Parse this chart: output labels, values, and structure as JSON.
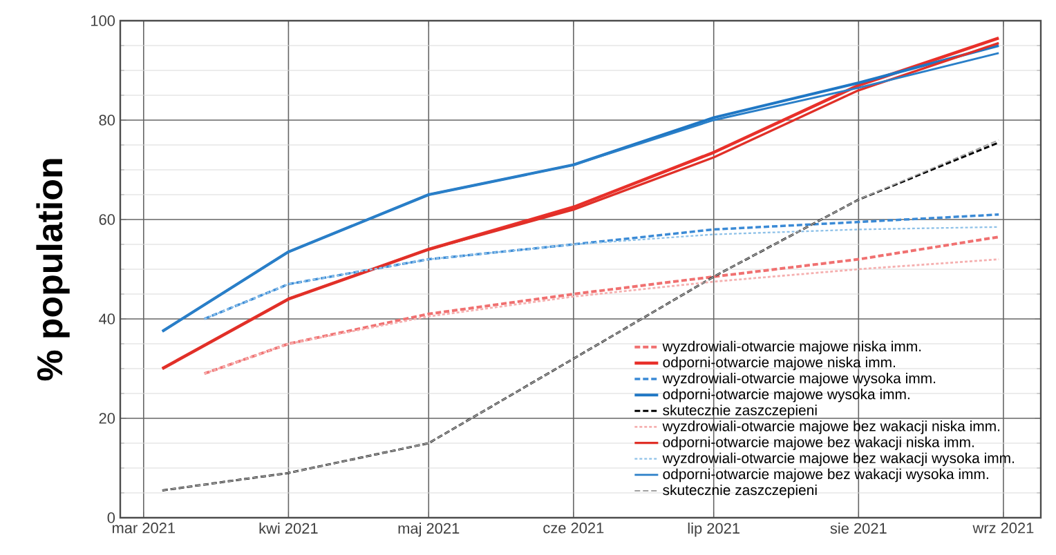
{
  "chart_data": {
    "type": "line",
    "ylabel": "% population",
    "xlim": [
      "2021-02-24",
      "2021-09-09"
    ],
    "xticks": [
      {
        "value": "2021-03-01",
        "label": "mar 2021"
      },
      {
        "value": "2021-04-01",
        "label": "kwi 2021"
      },
      {
        "value": "2021-05-01",
        "label": "maj 2021"
      },
      {
        "value": "2021-06-01",
        "label": "cze 2021"
      },
      {
        "value": "2021-07-01",
        "label": "lip 2021"
      },
      {
        "value": "2021-08-01",
        "label": "sie 2021"
      },
      {
        "value": "2021-09-01",
        "label": "wrz 2021"
      }
    ],
    "ylim": [
      0,
      100
    ],
    "yticks": [
      0,
      20,
      40,
      60,
      80,
      100
    ],
    "grid": true,
    "legend": "bottom right",
    "marker": "none",
    "series": [
      {
        "name": "wyzdrowiali-otwarcie majowe niska imm.",
        "color": "#f07070",
        "line_style": "dashed",
        "x": [
          "2021-03-14",
          "2021-04-01",
          "2021-05-01",
          "2021-06-01",
          "2021-07-01",
          "2021-08-01",
          "2021-08-31"
        ],
        "values": [
          29,
          35,
          41,
          45,
          48.5,
          52,
          56.5
        ]
      },
      {
        "name": "odporni-otwarcie majowe niska imm.",
        "color": "#e8302a",
        "line_style": "solid",
        "x": [
          "2021-03-05",
          "2021-04-01",
          "2021-05-01",
          "2021-06-01",
          "2021-07-01",
          "2021-08-01",
          "2021-08-31"
        ],
        "values": [
          30,
          44,
          54,
          62.5,
          73.5,
          87,
          96.5
        ]
      },
      {
        "name": "wyzdrowiali-otwarcie majowe wysoka imm.",
        "color": "#3a8ad6",
        "line_style": "dashed",
        "x": [
          "2021-03-14",
          "2021-04-01",
          "2021-05-01",
          "2021-06-01",
          "2021-07-01",
          "2021-08-01",
          "2021-08-31"
        ],
        "values": [
          40,
          47,
          52,
          55,
          58,
          59.5,
          61
        ]
      },
      {
        "name": "odporni-otwarcie majowe wysoka imm.",
        "color": "#1f77c4",
        "line_style": "solid",
        "x": [
          "2021-03-05",
          "2021-04-01",
          "2021-05-01",
          "2021-06-01",
          "2021-07-01",
          "2021-08-01",
          "2021-08-31"
        ],
        "values": [
          37.5,
          53.5,
          65,
          71,
          80.5,
          87.5,
          95
        ]
      },
      {
        "name": "skutecznie zaszczepieni",
        "color": "#000000",
        "line_style": "dashed",
        "x": [
          "2021-03-05",
          "2021-04-01",
          "2021-05-01",
          "2021-06-01",
          "2021-07-01",
          "2021-08-01",
          "2021-08-31"
        ],
        "values": [
          5.5,
          9,
          15,
          32,
          48.5,
          64,
          75.5
        ]
      },
      {
        "name": "wyzdrowiali-otwarcie majowe bez wakacji niska imm.",
        "color": "#f5b0b0",
        "line_style": "dotted",
        "x": [
          "2021-03-14",
          "2021-04-01",
          "2021-05-01",
          "2021-06-01",
          "2021-07-01",
          "2021-08-01",
          "2021-08-31"
        ],
        "values": [
          29,
          35,
          40.5,
          44.5,
          47.5,
          50,
          52
        ]
      },
      {
        "name": "odporni-otwarcie majowe bez wakacji niska imm.",
        "color": "#e03028",
        "line_style": "solid",
        "x": [
          "2021-03-05",
          "2021-04-01",
          "2021-05-01",
          "2021-06-01",
          "2021-07-01",
          "2021-08-01",
          "2021-08-31"
        ],
        "values": [
          30,
          44,
          54,
          62,
          72.5,
          86,
          95.5
        ]
      },
      {
        "name": "wyzdrowiali-otwarcie majowe bez wakacji wysoka imm.",
        "color": "#8ec1e8",
        "line_style": "dotted",
        "x": [
          "2021-03-14",
          "2021-04-01",
          "2021-05-01",
          "2021-06-01",
          "2021-07-01",
          "2021-08-01",
          "2021-08-31"
        ],
        "values": [
          40,
          47,
          52,
          55,
          57,
          58,
          58.5
        ]
      },
      {
        "name": "odporni-otwarcie majowe bez wakacji wysoka imm.",
        "color": "#2a7fc8",
        "line_style": "solid",
        "x": [
          "2021-03-05",
          "2021-04-01",
          "2021-05-01",
          "2021-06-01",
          "2021-07-01",
          "2021-08-01",
          "2021-08-31"
        ],
        "values": [
          37.5,
          53.5,
          65,
          71,
          80,
          86.5,
          93.5
        ]
      },
      {
        "name": "skutecznie zaszczepieni",
        "color": "#a0a0a0",
        "line_style": "dashed",
        "x": [
          "2021-03-05",
          "2021-04-01",
          "2021-05-01",
          "2021-06-01",
          "2021-07-01",
          "2021-08-01",
          "2021-08-31"
        ],
        "values": [
          5.5,
          9,
          15,
          32,
          48.5,
          64,
          76
        ]
      }
    ]
  }
}
